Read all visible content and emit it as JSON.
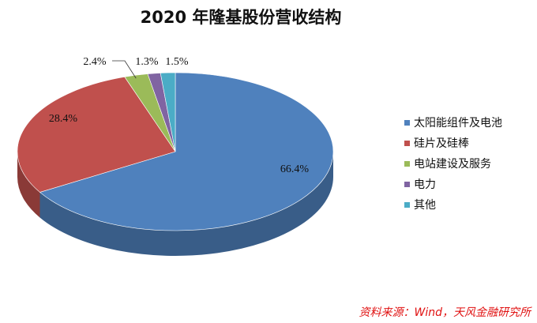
{
  "chart_data": {
    "type": "pie",
    "title": "2020 年隆基股份营收结构",
    "categories": [
      "太阳能组件及电池",
      "硅片及硅棒",
      "电站建设及服务",
      "电力",
      "其他"
    ],
    "values": [
      66.4,
      28.4,
      2.4,
      1.3,
      1.5
    ],
    "labels": [
      "66.4%",
      "28.4%",
      "2.4%",
      "1.3%",
      "1.5%"
    ],
    "colors": [
      "#4f81bd",
      "#c0504d",
      "#9bbb59",
      "#8064a2",
      "#4bacc6"
    ],
    "style": "3d",
    "legend_position": "right"
  },
  "source_note": "资料来源：Wind，天风金融研究所"
}
